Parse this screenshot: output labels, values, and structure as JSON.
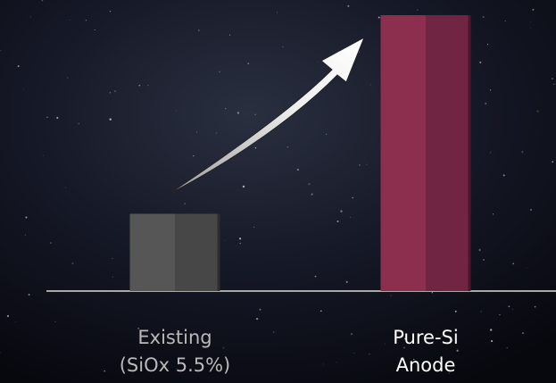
{
  "chart_data": {
    "type": "bar",
    "categories": [
      [
        "Existing",
        "(SiOx 5.5%)"
      ],
      [
        "Pure-Si",
        "Anode"
      ]
    ],
    "values": [
      28,
      100
    ],
    "colors": [
      [
        "#565656",
        "#474747"
      ],
      [
        "#8c2f4f",
        "#702543"
      ]
    ],
    "ylim": [
      0,
      100
    ]
  }
}
